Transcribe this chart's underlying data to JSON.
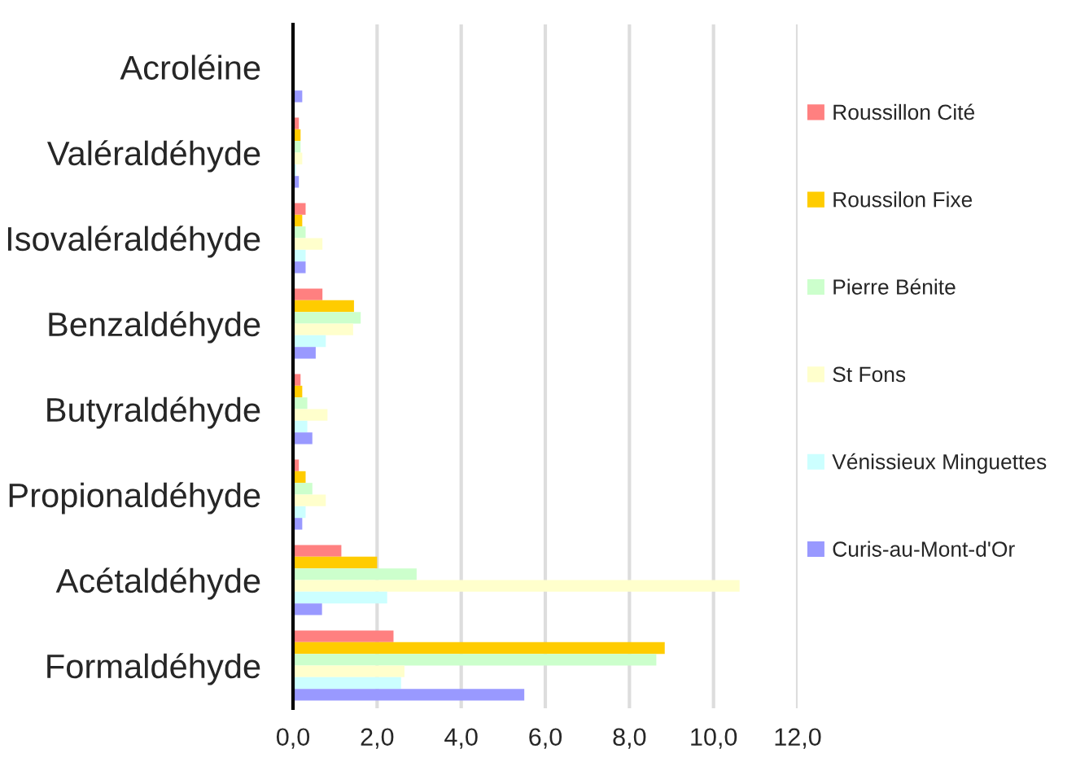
{
  "chart_data": {
    "type": "bar",
    "orientation": "horizontal",
    "categories": [
      "Acroléine",
      "Valéraldéhyde",
      "Isovaléraldéhyde",
      "Benzaldéhyde",
      "Butyraldéhyde",
      "Propionaldéhyde",
      "Acétaldéhyde",
      "Formaldéhyde"
    ],
    "series": [
      {
        "name": "Roussillon Cité",
        "color": "#ff8080",
        "values": [
          0,
          0.14,
          0.3,
          0.7,
          0.18,
          0.14,
          1.15,
          2.39
        ]
      },
      {
        "name": "Roussilon Fixe",
        "color": "#ffcc00",
        "values": [
          0,
          0.18,
          0.22,
          1.45,
          0.22,
          0.3,
          2.0,
          8.84
        ]
      },
      {
        "name": "Pierre Bénite",
        "color": "#ccffcc",
        "values": [
          0,
          0.18,
          0.3,
          1.61,
          0.34,
          0.46,
          2.94,
          8.64
        ]
      },
      {
        "name": "St Fons",
        "color": "#ffffcc",
        "values": [
          0,
          0.22,
          0.7,
          1.43,
          0.82,
          0.78,
          10.62,
          2.65
        ]
      },
      {
        "name": "Vénissieux Minguettes",
        "color": "#ccffff",
        "values": [
          0,
          0.07,
          0.3,
          0.78,
          0.34,
          0.3,
          2.24,
          2.57
        ]
      },
      {
        "name": "Curis-au-Mont-d'Or",
        "color": "#9999ff",
        "values": [
          0.22,
          0.14,
          0.3,
          0.54,
          0.46,
          0.22,
          0.69,
          5.5
        ]
      }
    ],
    "xlim": [
      0,
      12
    ],
    "xticks": [
      {
        "value": 0,
        "label": "0,0"
      },
      {
        "value": 2,
        "label": "2,0"
      },
      {
        "value": 4,
        "label": "4,0"
      },
      {
        "value": 6,
        "label": "6,0"
      },
      {
        "value": 8,
        "label": "8,0"
      },
      {
        "value": 10,
        "label": "10,0"
      },
      {
        "value": 12,
        "label": "12,0"
      }
    ],
    "grid": "x",
    "legend": "right"
  }
}
